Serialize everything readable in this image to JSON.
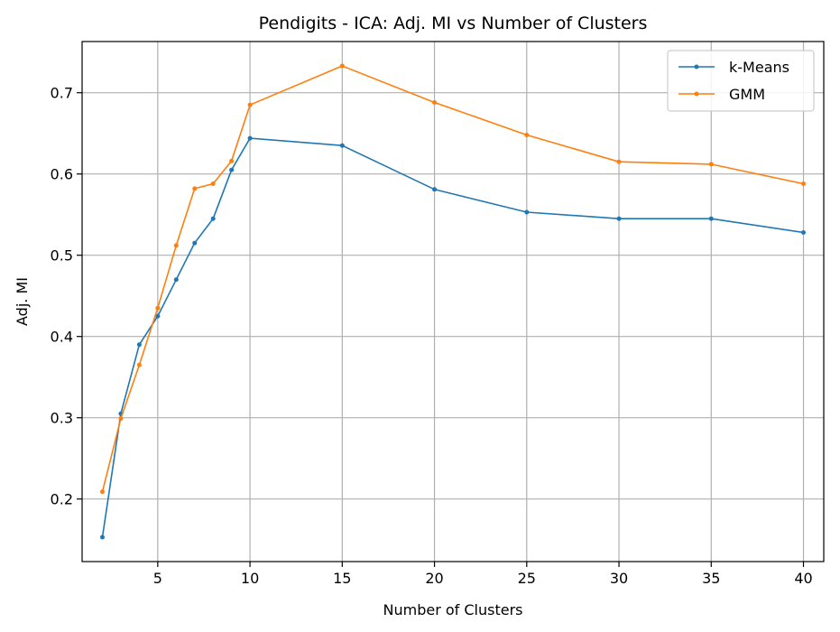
{
  "chart_data": {
    "type": "line",
    "title": "Pendigits - ICA: Adj. MI vs Number of Clusters",
    "xlabel": "Number of Clusters",
    "ylabel": "Adj. MI",
    "x": [
      2,
      3,
      4,
      5,
      6,
      7,
      8,
      9,
      10,
      15,
      20,
      25,
      30,
      35,
      40
    ],
    "xlim": [
      0.9,
      41.1
    ],
    "ylim": [
      0.123,
      0.763
    ],
    "xticks": [
      5,
      10,
      15,
      20,
      25,
      30,
      35,
      40
    ],
    "yticks": [
      0.2,
      0.3,
      0.4,
      0.5,
      0.6,
      0.7
    ],
    "grid": true,
    "legend_position": "top-right",
    "series": [
      {
        "name": "k-Means",
        "color": "#1f77b4",
        "values": [
          0.153,
          0.305,
          0.39,
          0.425,
          0.47,
          0.515,
          0.545,
          0.605,
          0.644,
          0.635,
          0.581,
          0.553,
          0.545,
          0.545,
          0.528
        ]
      },
      {
        "name": "GMM",
        "color": "#ff7f0e",
        "values": [
          0.209,
          0.299,
          0.365,
          0.435,
          0.512,
          0.582,
          0.588,
          0.616,
          0.685,
          0.733,
          0.688,
          0.648,
          0.615,
          0.612,
          0.588
        ]
      }
    ]
  }
}
